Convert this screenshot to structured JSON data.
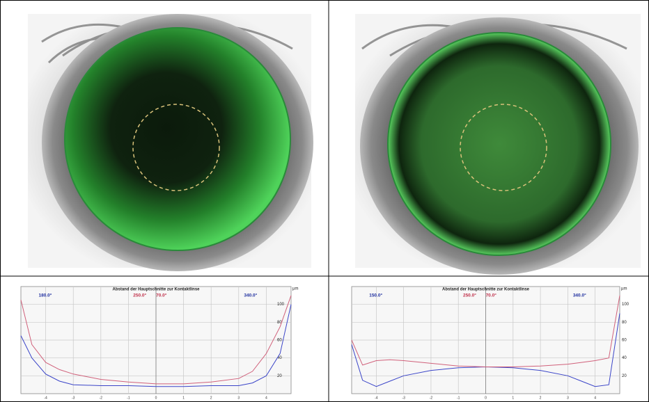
{
  "chart_data": [
    {
      "type": "line",
      "title": "Abstand der Hauptschnitte zur Kontaktlinse",
      "y_label": "µm",
      "annotations": [
        {
          "text": "180.0°",
          "color": "#1f2f9f"
        },
        {
          "text": "250.0°",
          "color": "#c0304a"
        },
        {
          "text": "70.0°",
          "color": "#c0304a"
        },
        {
          "text": "340.0°",
          "color": "#1f2f9f"
        }
      ],
      "x": [
        -4.9,
        -4.5,
        -4,
        -3.5,
        -3,
        -2,
        -1,
        0,
        1,
        2,
        3,
        3.5,
        4,
        4.5,
        4.9
      ],
      "series": [
        {
          "color": "#3a44c8",
          "values": [
            65,
            40,
            22,
            14,
            10,
            9,
            9,
            8,
            8,
            9,
            9,
            12,
            20,
            45,
            100
          ]
        },
        {
          "color": "#d0607a",
          "values": [
            105,
            55,
            35,
            27,
            22,
            16,
            13,
            11,
            11,
            13,
            17,
            25,
            45,
            75,
            110
          ]
        }
      ],
      "xlim": [
        -4.9,
        4.9
      ],
      "xticks": [
        -4,
        -3,
        -2,
        -1,
        0,
        1,
        2,
        3,
        4
      ],
      "ylim": [
        0,
        120
      ],
      "yticks": [
        20,
        40,
        60,
        80,
        100
      ],
      "grid": true
    },
    {
      "type": "line",
      "title": "Abstand der Hauptschnitte zur Kontaktlinse",
      "y_label": "µm",
      "annotations": [
        {
          "text": "150.0°",
          "color": "#1f2f9f"
        },
        {
          "text": "250.0°",
          "color": "#c0304a"
        },
        {
          "text": "70.0°",
          "color": "#c0304a"
        },
        {
          "text": "340.0°",
          "color": "#1f2f9f"
        }
      ],
      "x": [
        -4.9,
        -4.5,
        -4,
        -3.5,
        -3,
        -2,
        -1,
        0,
        1,
        2,
        3,
        3.5,
        4,
        4.5,
        4.9
      ],
      "series": [
        {
          "color": "#3a44c8",
          "values": [
            55,
            15,
            8,
            14,
            20,
            26,
            29,
            30,
            29,
            26,
            20,
            14,
            8,
            10,
            90
          ]
        },
        {
          "color": "#d0607a",
          "values": [
            60,
            32,
            37,
            38,
            37,
            34,
            31,
            30,
            30,
            31,
            33,
            35,
            37,
            40,
            110
          ]
        }
      ],
      "xlim": [
        -4.9,
        4.9
      ],
      "xticks": [
        -4,
        -3,
        -2,
        -1,
        0,
        1,
        2,
        3,
        4
      ],
      "ylim": [
        0,
        120
      ],
      "yticks": [
        20,
        40,
        60,
        80,
        100
      ],
      "grid": true
    }
  ]
}
